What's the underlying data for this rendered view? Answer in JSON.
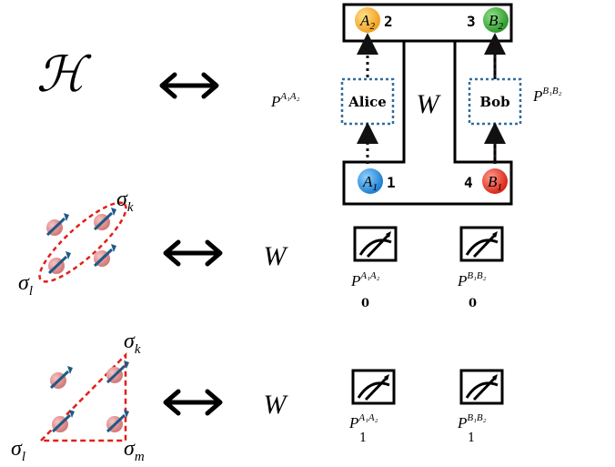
{
  "row1": {
    "hilbert_symbol": "ℋ",
    "alice_label": "Alice",
    "bob_label": "Bob",
    "w_symbol": "W",
    "p_alice": {
      "base": "P",
      "sup": "A₁A₂"
    },
    "p_bob": {
      "base": "P",
      "sup": "B₁B₂"
    },
    "nodes": [
      {
        "base": "A",
        "sub": "2",
        "number": "2",
        "color": "#f5a623"
      },
      {
        "base": "B",
        "sub": "2",
        "number": "3",
        "color": "#3cab3a"
      },
      {
        "base": "A",
        "sub": "1",
        "number": "1",
        "color": "#2d8fdc"
      },
      {
        "base": "B",
        "sub": "1",
        "number": "4",
        "color": "#e23a2a"
      }
    ]
  },
  "row2": {
    "sigma_k": {
      "base": "σ",
      "sub": "k"
    },
    "sigma_l": {
      "base": "σ",
      "sub": "l"
    },
    "w_symbol": "W",
    "p_alice": {
      "base": "P",
      "sup": "A₁A₂",
      "sub": "0"
    },
    "p_bob": {
      "base": "P",
      "sup": "B₁B₂",
      "sub": "0"
    }
  },
  "row3": {
    "sigma_k": {
      "base": "σ",
      "sub": "k"
    },
    "sigma_l": {
      "base": "σ",
      "sub": "l"
    },
    "sigma_m": {
      "base": "σ",
      "sub": "m"
    },
    "w_symbol": "W",
    "p_alice": {
      "base": "P",
      "sup": "A₁A₂",
      "sub": "1"
    },
    "p_bob": {
      "base": "P",
      "sup": "B₁B₂",
      "sub": "1"
    }
  },
  "colors": {
    "dashed_box": "#2e6da0",
    "spin_ball": "#e58a8a",
    "spin_arrow": "#1f5a86",
    "dashed_red": "#e0201a"
  }
}
